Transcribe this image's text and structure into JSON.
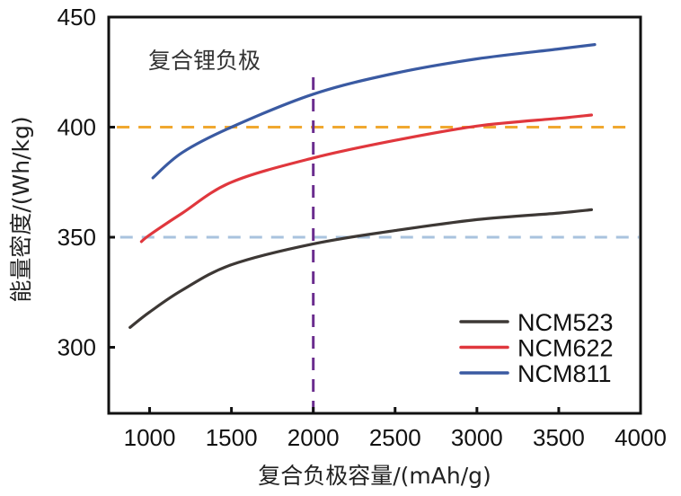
{
  "chart_data": {
    "type": "line",
    "title": "",
    "xlabel": "复合负极容量/(mAh/g)",
    "ylabel": "能量密度/(Wh/kg)",
    "xlim": [
      750,
      4000
    ],
    "ylim": [
      270,
      450
    ],
    "xticks": [
      1000,
      1500,
      2000,
      2500,
      3000,
      3500,
      4000
    ],
    "yticks": [
      300,
      350,
      400,
      450
    ],
    "xtick_labels": [
      "1000",
      "1500",
      "2000",
      "2500",
      "3000",
      "3500",
      "4000"
    ],
    "ytick_labels": [
      "300",
      "350",
      "400",
      "450"
    ],
    "grid": false,
    "legend_position": "bottom-right",
    "annotation": "复合锂负极",
    "reference_lines": [
      {
        "orientation": "horizontal",
        "value": 400,
        "color": "#f0a830",
        "style": "dashed",
        "from": 800,
        "to": 3950
      },
      {
        "orientation": "horizontal",
        "value": 350,
        "color": "#a9c3de",
        "style": "dashed",
        "from": 820,
        "to": 3990
      },
      {
        "orientation": "vertical",
        "value": 2000,
        "color": "#6b2d8e",
        "style": "dashed",
        "from": 270,
        "to": 424
      }
    ],
    "series": [
      {
        "name": "NCM523",
        "color": "#3d3835",
        "x": [
          880,
          1000,
          1200,
          1500,
          2000,
          2500,
          3000,
          3500,
          3700
        ],
        "y": [
          309,
          316,
          326,
          337.5,
          347,
          353,
          358,
          361,
          362.5
        ]
      },
      {
        "name": "NCM622",
        "color": "#e0373d",
        "x": [
          950,
          1000,
          1200,
          1500,
          2000,
          2500,
          3000,
          3500,
          3700
        ],
        "y": [
          348,
          351,
          361,
          375,
          386,
          394,
          400.5,
          404,
          405.5
        ]
      },
      {
        "name": "NCM811",
        "color": "#3a5aa2",
        "x": [
          1020,
          1200,
          1500,
          2000,
          2500,
          3000,
          3500,
          3720
        ],
        "y": [
          377,
          388.5,
          400,
          415,
          424.5,
          431,
          435.5,
          437.5
        ]
      }
    ]
  }
}
